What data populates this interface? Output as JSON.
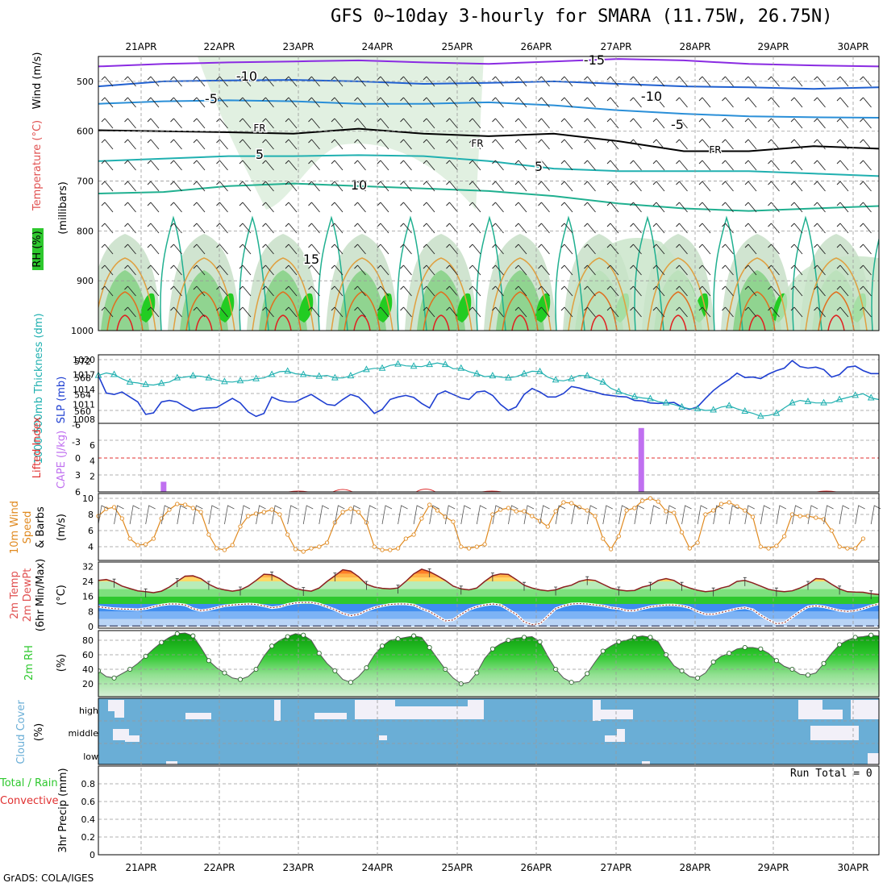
{
  "title": "GFS 0~10day 3-hourly for SMARA (11.75W, 26.75N)",
  "credit": "GrADS: COLA/IGES",
  "run_total": "Run Total = 0",
  "dates": [
    "21APR",
    "22APR",
    "23APR",
    "24APR",
    "25APR",
    "26APR",
    "27APR",
    "28APR",
    "29APR",
    "30APR"
  ],
  "colors": {
    "grid": "#999999",
    "slp": "#1f3fd1",
    "thickness": "#20b0b0",
    "cape": "#c070f0",
    "lifted": "#e03030",
    "wind": "#e08a20",
    "temp_line": "#8b2020",
    "cloud": "#6aaed6",
    "rh_green": "#2ec82e"
  },
  "chart_data": [
    {
      "id": "upper-air",
      "type": "heatmap",
      "ylabel_parts": [
        "Wind (m/s)",
        "Temperature (°C)",
        "RH (%)",
        "(millibars)"
      ],
      "y_ticks": [
        "500",
        "600",
        "700",
        "800",
        "900",
        "1000"
      ],
      "ylim": [
        1000,
        450
      ],
      "contour_labels": [
        "-15",
        "-10",
        "-10",
        "-5",
        "-5",
        "FR",
        "FR",
        "FR",
        "5",
        "5",
        "10",
        "15"
      ]
    },
    {
      "id": "slp-thickness",
      "type": "line",
      "ylabel_left": "1000-500mb Thickness (dm)",
      "ylabel_right": "SLP (mb)",
      "left_ticks": [
        "572",
        "568",
        "564",
        "560"
      ],
      "right_ticks": [
        "1020",
        "1017",
        "1014",
        "1011",
        "1008"
      ],
      "series": [
        {
          "name": "SLP",
          "axis": "right",
          "values": [
            1016.8,
            1013.3,
            1013,
            1013.5,
            1012.5,
            1011.5,
            1009,
            1009.3,
            1011.5,
            1011.8,
            1011.5,
            1010.5,
            1009.7,
            1010.2,
            1010.3,
            1010.4,
            1011.3,
            1012.2,
            1011.3,
            1009.5,
            1008.6,
            1009.2,
            1012.5,
            1011.8,
            1011.5,
            1011.5,
            1012.3,
            1013,
            1012,
            1011,
            1010.8,
            1012,
            1013,
            1012.5,
            1011,
            1009.2,
            1010,
            1012,
            1012.5,
            1012.8,
            1012.4,
            1011.2,
            1010.3,
            1013,
            1013.7,
            1013,
            1012.3,
            1012,
            1013.5,
            1013.7,
            1012.8,
            1011,
            1009.8,
            1010.5,
            1013,
            1014.2,
            1013.5,
            1012.5,
            1012.5,
            1013.2,
            1014.6,
            1014.3,
            1013.8,
            1013.5,
            1013,
            1012.8,
            1012.6,
            1012.5,
            1011.8,
            1011.7,
            1011.3,
            1011.2,
            1011.3,
            1011.4,
            1010.5,
            1010,
            1010.5,
            1012.2,
            1013.8,
            1015,
            1016,
            1017.3,
            1016.4,
            1016.5,
            1016.2,
            1017.1,
            1017.8,
            1018.3,
            1019.8,
            1018.6,
            1018.3,
            1018.5,
            1018,
            1016.5,
            1017,
            1018.5,
            1018.7,
            1017.8,
            1017.2,
            1017.2
          ]
        },
        {
          "name": "Thickness",
          "axis": "left",
          "values": [
            568.6,
            569.2,
            568.8,
            567.8,
            567,
            566.8,
            566.4,
            566.3,
            566.7,
            567,
            568,
            568.2,
            568.5,
            568.4,
            568,
            567.5,
            567.1,
            567,
            567.3,
            567.4,
            567.8,
            568,
            568.8,
            569.5,
            569.6,
            569,
            568.8,
            568.5,
            568.4,
            568.6,
            568,
            568,
            568.5,
            569.3,
            570,
            570.3,
            570.3,
            571,
            571.3,
            570.9,
            570.8,
            570.7,
            571.2,
            571.6,
            571.2,
            570.2,
            570.3,
            569.5,
            569,
            568.3,
            568.5,
            568.2,
            568,
            568.3,
            569,
            569.6,
            569.5,
            568.2,
            567.5,
            567.3,
            567.8,
            568.6,
            568.5,
            567.7,
            567,
            565.5,
            564.7,
            564,
            563.5,
            563.2,
            563,
            562.3,
            562,
            561.6,
            561,
            560.6,
            560.6,
            560.2,
            560.3,
            561,
            561.3,
            560.6,
            560,
            559.5,
            558.8,
            559,
            559.5,
            560.8,
            562,
            562.6,
            562.3,
            562,
            562,
            562,
            562.8,
            563.3,
            563.8,
            564.2,
            563.2,
            562.8
          ]
        }
      ]
    },
    {
      "id": "cape-li",
      "type": "bar",
      "ylabel_left": "Lifted Index",
      "ylabel_right": "CAPE (J/kg)",
      "left_ticks": [
        "-6",
        "-3",
        "0",
        "3",
        "6"
      ],
      "right_ticks": [
        "6",
        "4",
        "2"
      ],
      "bars": [
        {
          "x_frac": 0.083,
          "value": 1.3
        },
        {
          "x_frac": 0.695,
          "value": 8.2
        }
      ]
    },
    {
      "id": "wind-10m",
      "type": "line",
      "ylabel_parts": [
        "10m Wind",
        "Speed",
        "& Barbs",
        "(m/s)"
      ],
      "y_ticks": [
        "10",
        "8",
        "6",
        "4"
      ],
      "ylim": [
        2.5,
        10.5
      ],
      "series": [
        {
          "name": "10m Wind Speed",
          "values": [
            7.8,
            8.7,
            8.9,
            7.5,
            5,
            4.2,
            4.3,
            5,
            7.5,
            8.6,
            9.3,
            9.2,
            8.8,
            8.3,
            5.5,
            3.8,
            3.6,
            4.2,
            6.5,
            7.8,
            8.1,
            8.3,
            8.6,
            8,
            5.5,
            3.7,
            3.4,
            3.8,
            4,
            4.5,
            7,
            8.3,
            8.7,
            8.3,
            7,
            4,
            3.6,
            3.6,
            3.8,
            5,
            5.5,
            7.5,
            9.2,
            8.5,
            7.7,
            7.1,
            4,
            3.8,
            4,
            4.3,
            8,
            8.6,
            8.8,
            8.4,
            8.4,
            7.8,
            7.2,
            6.5,
            8.4,
            9.5,
            9.4,
            8.9,
            8.5,
            7.8,
            5,
            3.7,
            5.3,
            8.5,
            8.8,
            9.7,
            10,
            9.6,
            8.4,
            8.2,
            5.8,
            3.8,
            4.5,
            8,
            8.5,
            9.3,
            9.5,
            9,
            8.5,
            7.7,
            4,
            3.8,
            4.1,
            5.3,
            8,
            7.8,
            7.8,
            7.6,
            7.4,
            6,
            4,
            3.8,
            3.8,
            5
          ]
        }
      ]
    },
    {
      "id": "temp-2m",
      "type": "area",
      "ylabel_parts": [
        "2m Temp",
        "2m DewPt",
        "(6hr Min/Max)"
      ],
      "y_ticks": [
        "32",
        "24",
        "16",
        "8",
        "0"
      ],
      "ylim": [
        0,
        33
      ],
      "series": [
        {
          "name": "Temperature",
          "values": [
            24.5,
            25,
            23.7,
            21.5,
            20.2,
            19,
            18.5,
            18,
            18.8,
            21,
            24,
            26.8,
            27,
            25.5,
            22.5,
            20.5,
            19.5,
            18.8,
            19.5,
            21.5,
            24.5,
            27.8,
            27.5,
            25.5,
            22.5,
            20.2,
            19.3,
            18.8,
            20.5,
            24,
            27,
            30.2,
            29.5,
            26.5,
            22.5,
            21,
            20.3,
            20,
            20.5,
            24,
            28,
            30.5,
            29.2,
            27,
            24.5,
            21.5,
            20,
            19.5,
            20.5,
            24,
            27,
            28,
            27.7,
            25,
            22,
            20.5,
            19.5,
            19,
            19.5,
            21,
            22,
            24,
            25,
            24.5,
            22.5,
            20.5,
            19.5,
            19,
            19.2,
            21,
            22,
            24.5,
            25.5,
            24.5,
            22,
            20.5,
            19.3,
            18.5,
            19,
            20.5,
            21.5,
            24,
            24.5,
            23.2,
            21.5,
            19.8,
            19,
            18.5,
            19,
            20.5,
            22.5,
            25.5,
            25.2,
            22.5,
            20,
            18.5,
            18.3,
            18.2,
            17.5,
            17
          ]
        },
        {
          "name": "Dew Point",
          "values": [
            10.5,
            10,
            9.5,
            9.3,
            9.2,
            9,
            9.5,
            10.5,
            11.5,
            12,
            12,
            11.5,
            9.5,
            8.5,
            9,
            10,
            11,
            11.5,
            11.8,
            12,
            11.8,
            11,
            10,
            10.5,
            11.8,
            12.5,
            12.8,
            12.8,
            12,
            10.5,
            9,
            7,
            5.8,
            6.5,
            8.5,
            10,
            11,
            11.8,
            12,
            12,
            11.5,
            9.5,
            8,
            5.5,
            3,
            3.5,
            6.5,
            9,
            10.5,
            11.5,
            12,
            11.5,
            9,
            6.5,
            2.5,
            1,
            1.5,
            5.5,
            9.5,
            11,
            12,
            12.2,
            12,
            11.5,
            11,
            10,
            9.5,
            8.5,
            8.5,
            9.5,
            10.5,
            11,
            11.5,
            11.5,
            11,
            10,
            8,
            6.5,
            6.5,
            7.5,
            8.5,
            9.5,
            10,
            9,
            6,
            3.5,
            1.5,
            2,
            5,
            8,
            10.5,
            11,
            10.5,
            9.5,
            8.5,
            8,
            8.5,
            9.5,
            11,
            12
          ]
        }
      ]
    },
    {
      "id": "rh-2m",
      "type": "area",
      "ylabel": "2m RH",
      "unit": "(%)",
      "y_ticks": [
        "80",
        "60",
        "40",
        "20"
      ],
      "ylim": [
        8,
        95
      ],
      "series": [
        {
          "name": "2m RH",
          "values": [
            38,
            30,
            28,
            34,
            40,
            48,
            58,
            68,
            77,
            84,
            89,
            90,
            86,
            70,
            52,
            42,
            35,
            28,
            26,
            30,
            40,
            58,
            72,
            80,
            85,
            89,
            87,
            80,
            62,
            48,
            38,
            26,
            22,
            30,
            42,
            60,
            72,
            80,
            82,
            84,
            86,
            84,
            70,
            55,
            40,
            28,
            20,
            22,
            35,
            55,
            68,
            75,
            80,
            83,
            84,
            85,
            78,
            58,
            40,
            28,
            22,
            23,
            34,
            50,
            65,
            72,
            78,
            80,
            84,
            86,
            84,
            78,
            60,
            45,
            38,
            30,
            28,
            35,
            50,
            58,
            62,
            68,
            70,
            70,
            68,
            62,
            52,
            44,
            40,
            33,
            32,
            35,
            48,
            62,
            74,
            80,
            84,
            85,
            87,
            86
          ]
        }
      ]
    },
    {
      "id": "cloud-cover",
      "type": "heatmap",
      "ylabel": "Cloud Cover",
      "unit": "(%)",
      "rows": [
        "high",
        "middle",
        "low"
      ]
    },
    {
      "id": "precip",
      "type": "bar",
      "ylabel_parts": [
        "Total / Rain",
        "Convective",
        "3hr Precip (mm)"
      ],
      "y_ticks": [
        "0.8",
        "0.6",
        "0.4",
        "0.2",
        "0"
      ],
      "ylim": [
        0,
        1
      ],
      "values": []
    }
  ]
}
